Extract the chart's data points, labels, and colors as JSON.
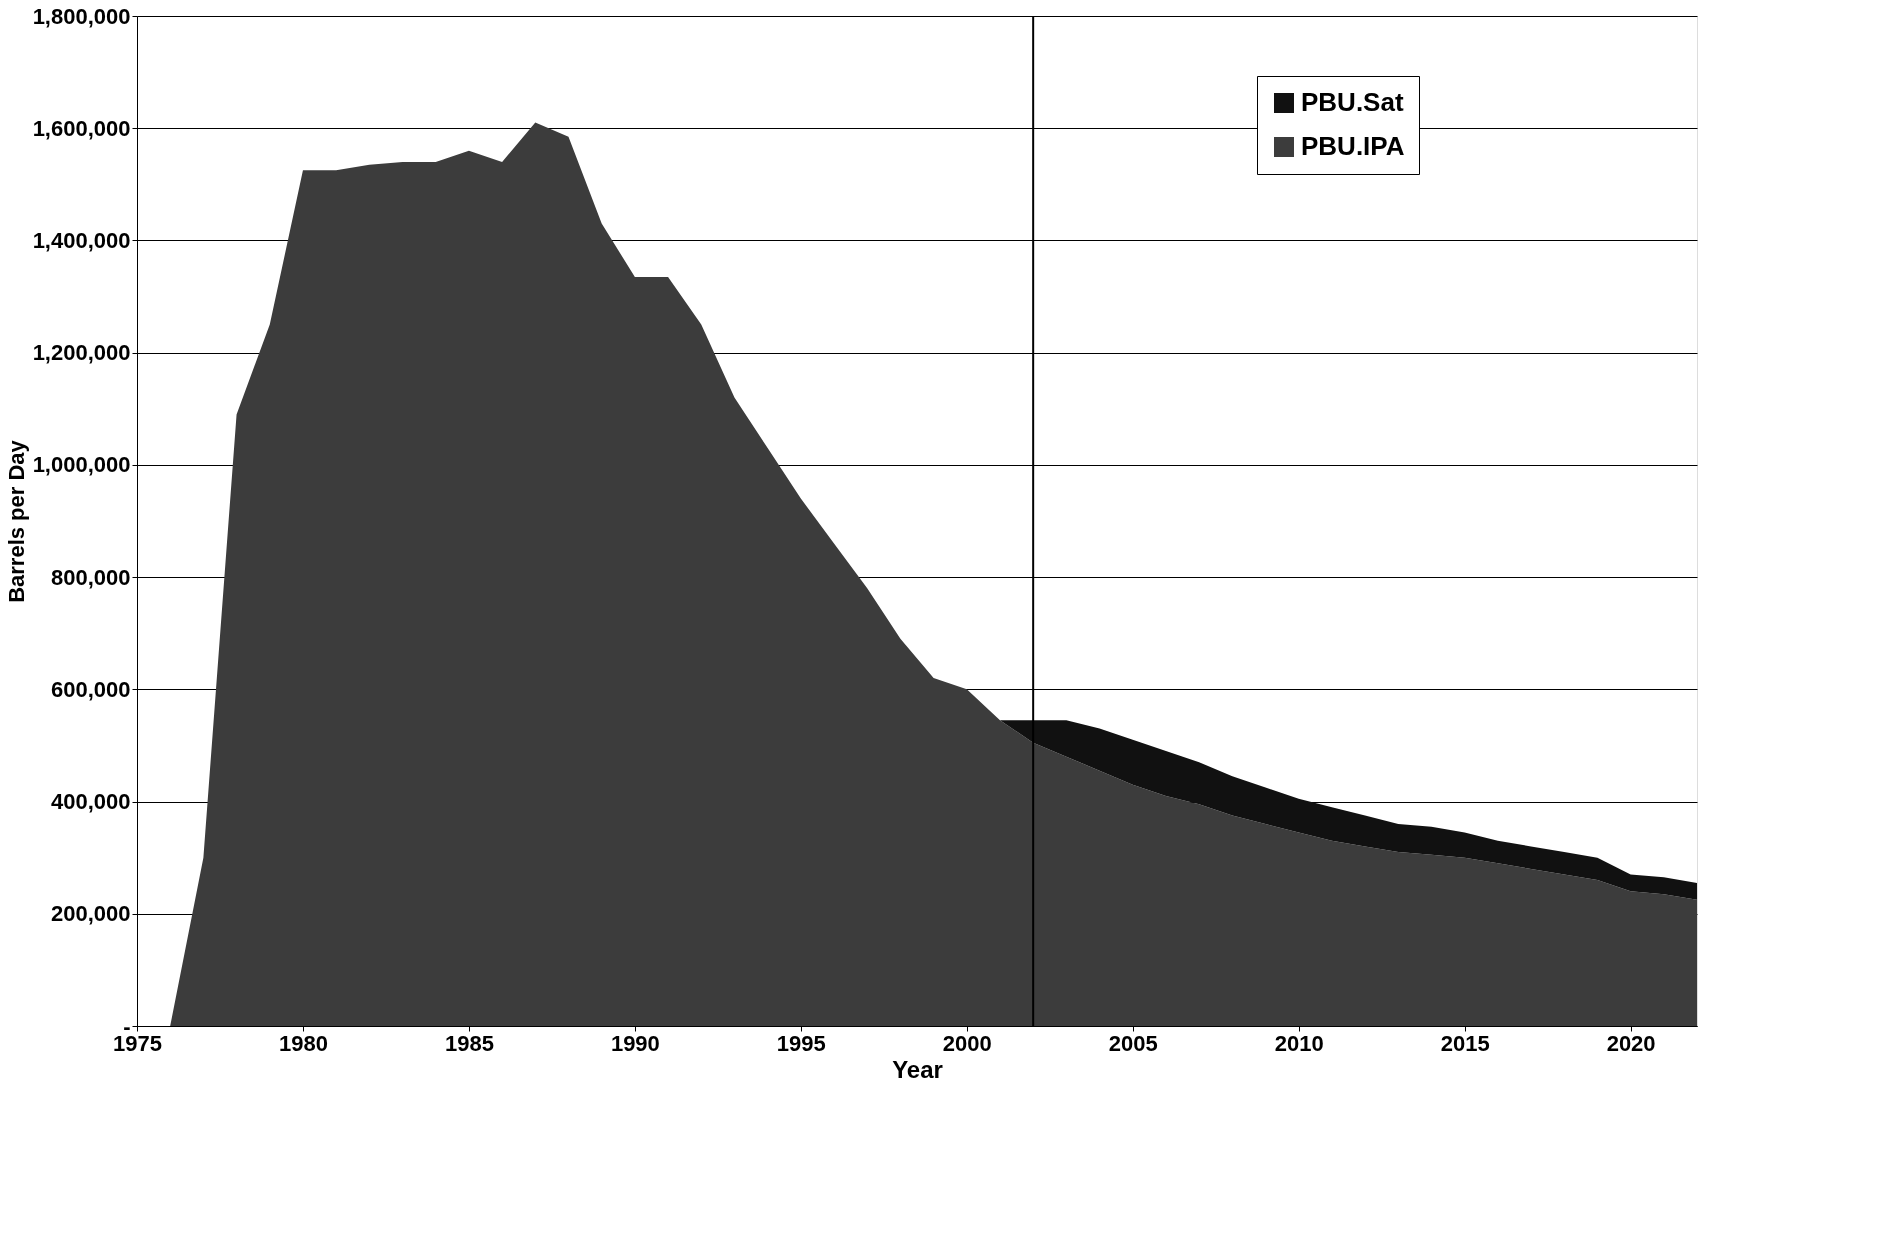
{
  "chart_data": {
    "type": "area",
    "stacked": true,
    "xlabel": "Year",
    "ylabel": "Barrels per Day",
    "x": [
      1975,
      1976,
      1977,
      1978,
      1979,
      1980,
      1981,
      1982,
      1983,
      1984,
      1985,
      1986,
      1987,
      1988,
      1989,
      1990,
      1991,
      1992,
      1993,
      1994,
      1995,
      1996,
      1997,
      1998,
      1999,
      2000,
      2001,
      2002,
      2003,
      2004,
      2005,
      2006,
      2007,
      2008,
      2009,
      2010,
      2011,
      2012,
      2013,
      2014,
      2015,
      2016,
      2017,
      2018,
      2019,
      2020,
      2021,
      2022
    ],
    "series": [
      {
        "name": "PBU.IPA",
        "color": "#3c3c3c",
        "values": [
          0,
          0,
          300000,
          1090000,
          1250000,
          1525000,
          1525000,
          1535000,
          1540000,
          1540000,
          1560000,
          1540000,
          1610000,
          1585000,
          1430000,
          1335000,
          1335000,
          1250000,
          1120000,
          1030000,
          940000,
          860000,
          780000,
          690000,
          620000,
          600000,
          545000,
          505000,
          480000,
          455000,
          430000,
          410000,
          395000,
          375000,
          360000,
          345000,
          330000,
          320000,
          310000,
          305000,
          300000,
          290000,
          280000,
          270000,
          260000,
          240000,
          235000,
          225000
        ]
      },
      {
        "name": "PBU.Sat",
        "color": "#111111",
        "values": [
          null,
          null,
          null,
          null,
          null,
          null,
          null,
          null,
          null,
          null,
          null,
          null,
          null,
          null,
          null,
          null,
          null,
          null,
          null,
          null,
          null,
          null,
          null,
          null,
          null,
          null,
          0,
          40000,
          65000,
          75000,
          80000,
          80000,
          75000,
          70000,
          65000,
          60000,
          60000,
          55000,
          50000,
          50000,
          45000,
          40000,
          40000,
          40000,
          40000,
          30000,
          30000,
          30000
        ]
      }
    ],
    "xlim": [
      1975,
      2022
    ],
    "xticks": [
      1975,
      1980,
      1985,
      1990,
      1995,
      2000,
      2005,
      2010,
      2015,
      2020
    ],
    "ylim": [
      0,
      1800000
    ],
    "yticks": [
      {
        "value": 0,
        "label": "-"
      },
      {
        "value": 200000,
        "label": "200,000"
      },
      {
        "value": 400000,
        "label": "400,000"
      },
      {
        "value": 600000,
        "label": "600,000"
      },
      {
        "value": 800000,
        "label": "800,000"
      },
      {
        "value": 1000000,
        "label": "1,000,000"
      },
      {
        "value": 1200000,
        "label": "1,200,000"
      },
      {
        "value": 1400000,
        "label": "1,400,000"
      },
      {
        "value": 1600000,
        "label": "1,600,000"
      },
      {
        "value": 1800000,
        "label": "1,800,000"
      }
    ],
    "ref_lines": [
      {
        "axis": "x",
        "value": 2002,
        "color": "#000000"
      }
    ],
    "grid": "y",
    "legend": "top right"
  }
}
